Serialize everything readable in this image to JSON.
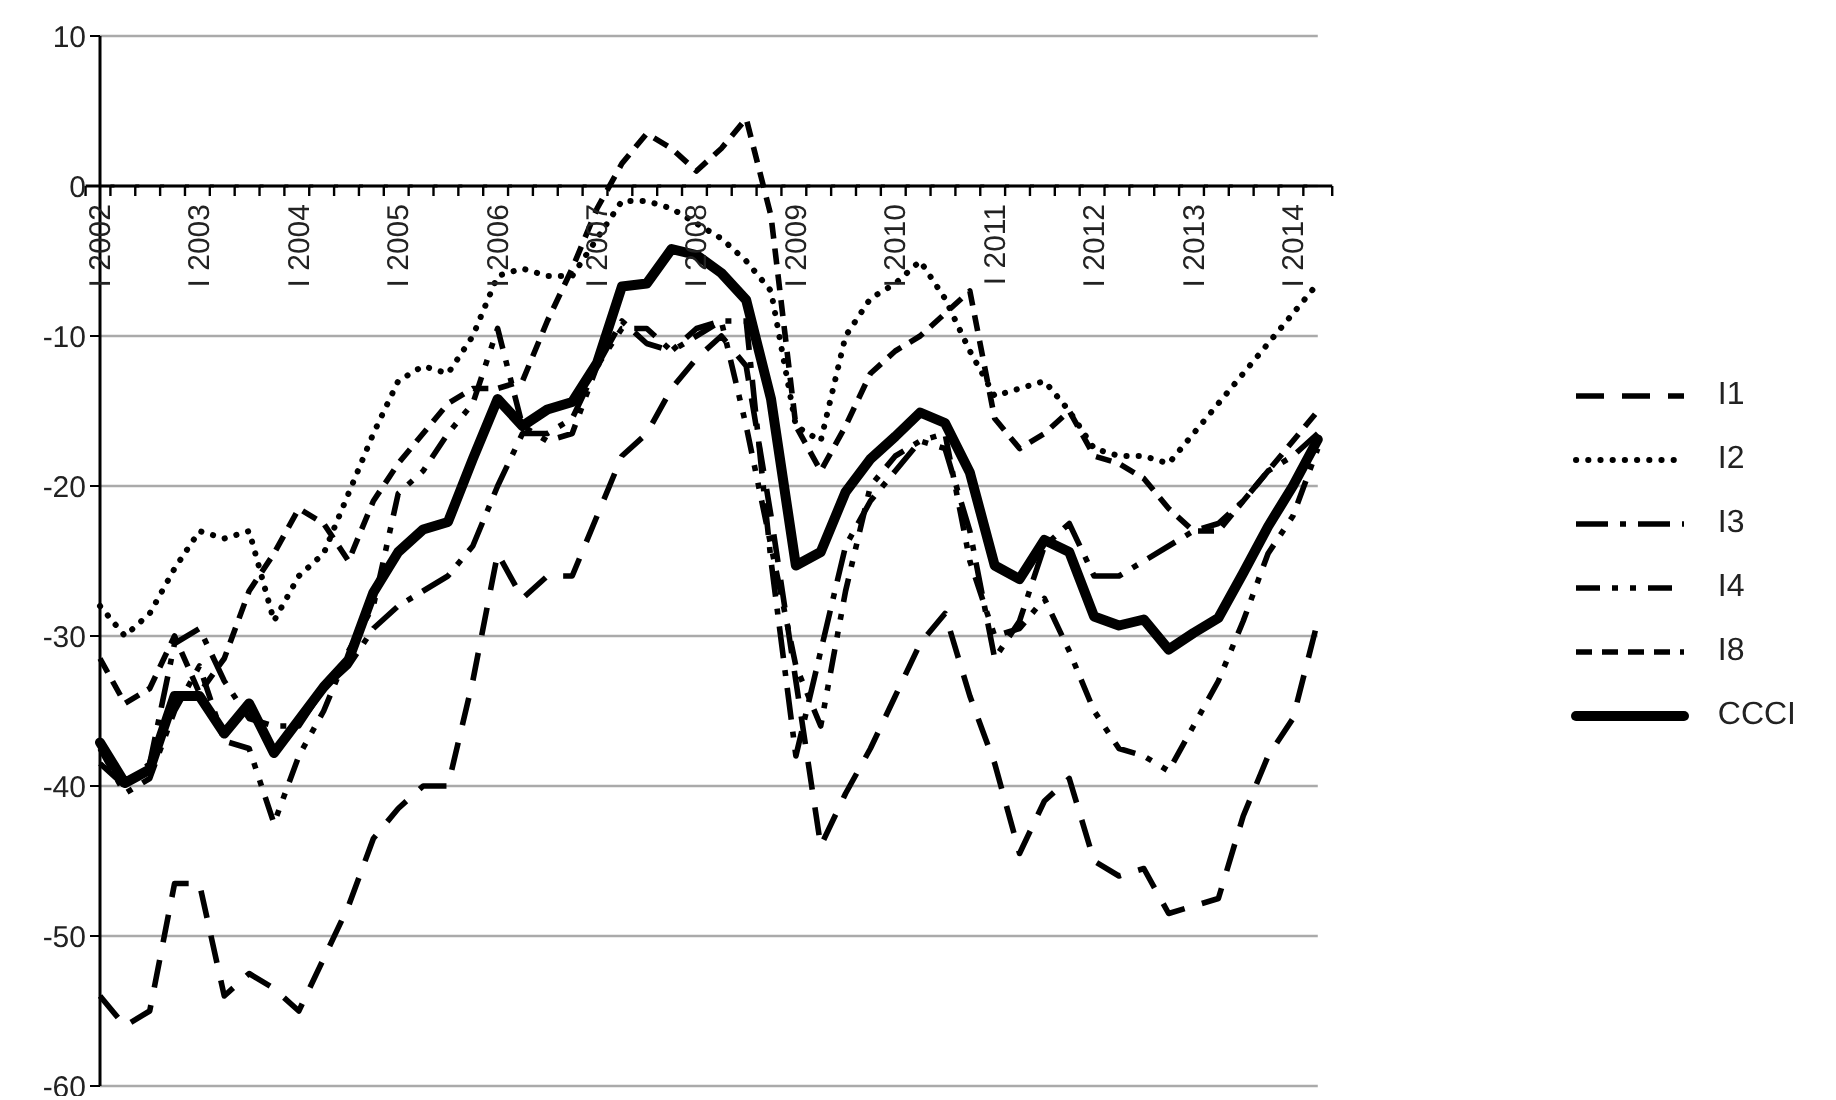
{
  "chart_data": {
    "type": "line",
    "categories": [
      "I 2002",
      null,
      null,
      null,
      "I 2003",
      null,
      null,
      null,
      "I 2004",
      null,
      null,
      null,
      "I 2005",
      null,
      null,
      null,
      "I 2006",
      null,
      null,
      null,
      "I 2007",
      null,
      null,
      null,
      "I 2008",
      null,
      null,
      null,
      "I 2009",
      null,
      null,
      null,
      "I 2010",
      null,
      null,
      null,
      "I 2011",
      null,
      null,
      null,
      "I 2012",
      null,
      null,
      null,
      "I 2013",
      null,
      null,
      null,
      "I 2014",
      null
    ],
    "series": [
      {
        "name": "I1",
        "color": "#000000",
        "line_style": "dashed",
        "values": [
          -54,
          -56,
          -55,
          -46.5,
          -46.5,
          -54,
          -52.5,
          -53.5,
          -55,
          -51.5,
          -48,
          -43.5,
          -41.5,
          -40,
          -40,
          -33,
          -24.5,
          -27.5,
          -26,
          -26,
          -22,
          -18,
          -16.5,
          -13.5,
          -11.5,
          -10,
          -12,
          -22,
          -33,
          -44,
          -40.5,
          -37.5,
          -34,
          -30.5,
          -28.5,
          -34,
          -38.5,
          -44.5,
          -41,
          -39.5,
          -45,
          -46,
          -45.5,
          -48.5,
          -48,
          -47.5,
          -42,
          -38,
          -35.5,
          -29
        ]
      },
      {
        "name": "I2",
        "color": "#000000",
        "line_style": "dotted",
        "values": [
          -28,
          -30,
          -28.5,
          -25.5,
          -23,
          -23.5,
          -23,
          -29,
          -26,
          -24.5,
          -20.5,
          -16.5,
          -13,
          -12,
          -12.5,
          -10,
          -6,
          -5.5,
          -6,
          -6,
          -3.5,
          -1,
          -1,
          -1.5,
          -2.5,
          -3.5,
          -5,
          -7,
          -16,
          -17,
          -10,
          -7.5,
          -6.5,
          -5,
          -7.5,
          -11,
          -14,
          -13.5,
          -13,
          -15,
          -17.5,
          -18,
          -18,
          -18.5,
          -16.5,
          -14.5,
          -12.5,
          -10.5,
          -8.5,
          -6.5
        ]
      },
      {
        "name": "I3",
        "color": "#000000",
        "line_style": "dashed",
        "values": [
          -38.5,
          -40,
          -38.5,
          -30.5,
          -29.5,
          -33,
          -35.5,
          -36,
          -36,
          -33.5,
          -32,
          -29.5,
          -28,
          -27,
          -26,
          -24,
          -20,
          -16.5,
          -16.5,
          -15.5,
          -12,
          -9,
          -10.5,
          -11,
          -9.5,
          -9,
          -9,
          -25,
          -38,
          -31,
          -24,
          -21,
          -19,
          -17,
          -17.5,
          -23,
          -31.5,
          -29,
          -24,
          -22.5,
          -26,
          -26,
          -25,
          -24,
          -23,
          -22.5,
          -21,
          -19,
          -18,
          -16.5
        ]
      },
      {
        "name": "I4",
        "color": "#000000",
        "line_style": "dashed",
        "values": [
          -37.5,
          -40.5,
          -39.5,
          -35,
          -32,
          -37,
          -37.5,
          -42.5,
          -38,
          -35,
          -31,
          -28,
          -20.5,
          -19,
          -16.5,
          -14.5,
          -9.5,
          -16,
          -17,
          -16.5,
          -12,
          -9.5,
          -9.5,
          -11,
          -10,
          -9,
          -16,
          -24,
          -32,
          -36,
          -27,
          -20,
          -18,
          -17,
          -16.5,
          -25,
          -30,
          -29.5,
          -27.5,
          -31,
          -35,
          -37.5,
          -38,
          -39,
          -36,
          -33,
          -29,
          -24.5,
          -22,
          -17.5
        ]
      },
      {
        "name": "I8",
        "color": "#000000",
        "line_style": "dashed",
        "values": [
          -31.5,
          -34.5,
          -33.5,
          -30,
          -33.8,
          -31.5,
          -27,
          -24.5,
          -21.5,
          -22.5,
          -25,
          -21,
          -18.5,
          -16.5,
          -14.5,
          -13.5,
          -13.5,
          -13,
          -9,
          -5.5,
          -1.5,
          1.5,
          3.5,
          2.5,
          1,
          2.5,
          4.5,
          -2,
          -16,
          -19,
          -16,
          -12.5,
          -11,
          -10,
          -8.5,
          -7,
          -15.5,
          -17.5,
          -16.5,
          -15,
          -18,
          -18.5,
          -19.5,
          -21.5,
          -23,
          -23,
          -21,
          -19,
          -17,
          -15
        ]
      },
      {
        "name": "CCCI",
        "color": "#000000",
        "line_style": "solid",
        "values": [
          -37.1,
          -39.8,
          -38.9,
          -34,
          -34,
          -36.5,
          -34.5,
          -37.8,
          -35.6,
          -33.4,
          -31.6,
          -27.1,
          -24.4,
          -22.9,
          -22.4,
          -18.2,
          -14.2,
          -16,
          -14.9,
          -14.4,
          -11.8,
          -6.7,
          -6.5,
          -4.2,
          -4.6,
          -5.8,
          -7.6,
          -14.2,
          -25.3,
          -24.4,
          -20.4,
          -18.2,
          -16.7,
          -15.1,
          -15.8,
          -19.1,
          -25.3,
          -26.2,
          -23.6,
          -24.4,
          -28.7,
          -29.3,
          -28.9,
          -30.9,
          -29.8,
          -28.8,
          -25.8,
          -22.7,
          -20,
          -16.9
        ]
      }
    ],
    "ylim": [
      -60,
      10
    ],
    "yticks": [
      -60,
      -50,
      -40,
      -30,
      -20,
      -10,
      0,
      10
    ],
    "grid": "y",
    "legend": "right",
    "marker": "none"
  }
}
